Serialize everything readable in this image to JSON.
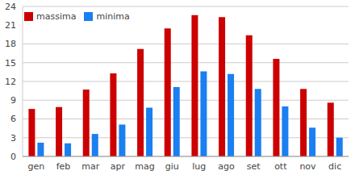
{
  "chart_data": {
    "type": "bar",
    "categories": [
      "gen",
      "feb",
      "mar",
      "apr",
      "mag",
      "giu",
      "lug",
      "ago",
      "set",
      "ott",
      "nov",
      "dic"
    ],
    "series": [
      {
        "name": "massima",
        "color": "#cc0000",
        "values": [
          7.6,
          7.9,
          10.7,
          13.3,
          17.2,
          20.5,
          22.6,
          22.3,
          19.4,
          15.6,
          10.8,
          8.6
        ]
      },
      {
        "name": "minima",
        "color": "#1a7ff0",
        "values": [
          2.2,
          2.1,
          3.6,
          5.1,
          7.8,
          11.1,
          13.6,
          13.2,
          10.8,
          8.0,
          4.6,
          3.0
        ]
      }
    ],
    "ylim": [
      0,
      24
    ],
    "yticks": [
      0,
      3,
      6,
      9,
      12,
      15,
      18,
      21,
      24
    ],
    "grid": true,
    "legend": "top-left"
  }
}
